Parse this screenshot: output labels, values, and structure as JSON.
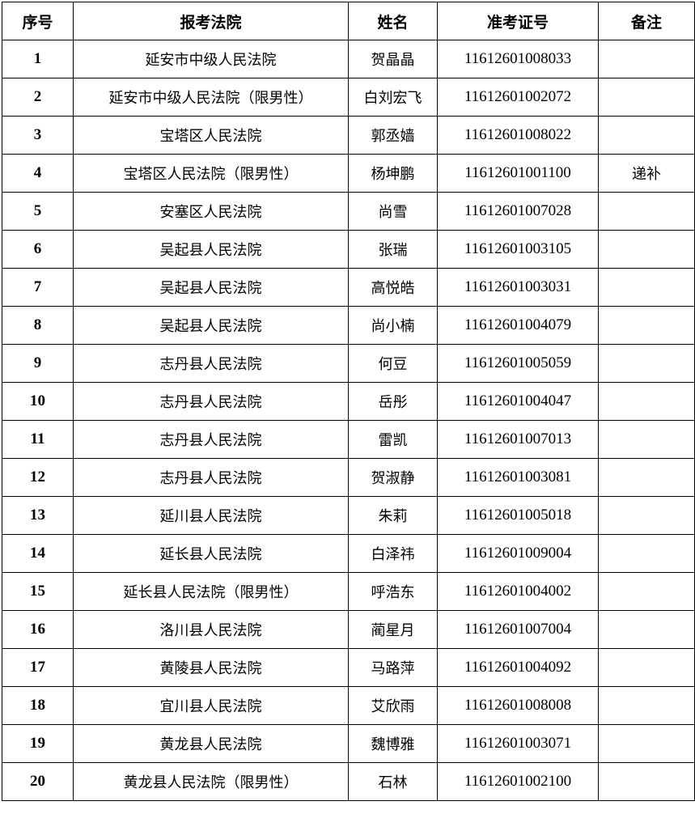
{
  "headers": [
    "序号",
    "报考法院",
    "姓名",
    "准考证号",
    "备注"
  ],
  "rows": [
    {
      "no": "1",
      "court": "延安市中级人民法院",
      "name": "贺晶晶",
      "id": "11612601008033",
      "note": ""
    },
    {
      "no": "2",
      "court": "延安市中级人民法院（限男性）",
      "name": "白刘宏飞",
      "id": "11612601002072",
      "note": ""
    },
    {
      "no": "3",
      "court": "宝塔区人民法院",
      "name": "郭丞嫱",
      "id": "11612601008022",
      "note": ""
    },
    {
      "no": "4",
      "court": "宝塔区人民法院（限男性）",
      "name": "杨坤鹏",
      "id": "11612601001100",
      "note": "递补"
    },
    {
      "no": "5",
      "court": "安塞区人民法院",
      "name": "尚雪",
      "id": "11612601007028",
      "note": ""
    },
    {
      "no": "6",
      "court": "吴起县人民法院",
      "name": "张瑞",
      "id": "11612601003105",
      "note": ""
    },
    {
      "no": "7",
      "court": "吴起县人民法院",
      "name": "高悦皓",
      "id": "11612601003031",
      "note": ""
    },
    {
      "no": "8",
      "court": "吴起县人民法院",
      "name": "尚小楠",
      "id": "11612601004079",
      "note": ""
    },
    {
      "no": "9",
      "court": "志丹县人民法院",
      "name": "何豆",
      "id": "11612601005059",
      "note": ""
    },
    {
      "no": "10",
      "court": "志丹县人民法院",
      "name": "岳彤",
      "id": "11612601004047",
      "note": ""
    },
    {
      "no": "11",
      "court": "志丹县人民法院",
      "name": "雷凯",
      "id": "11612601007013",
      "note": ""
    },
    {
      "no": "12",
      "court": "志丹县人民法院",
      "name": "贺淑静",
      "id": "11612601003081",
      "note": ""
    },
    {
      "no": "13",
      "court": "延川县人民法院",
      "name": "朱莉",
      "id": "11612601005018",
      "note": ""
    },
    {
      "no": "14",
      "court": "延长县人民法院",
      "name": "白泽祎",
      "id": "11612601009004",
      "note": ""
    },
    {
      "no": "15",
      "court": "延长县人民法院（限男性）",
      "name": "呼浩东",
      "id": "11612601004002",
      "note": ""
    },
    {
      "no": "16",
      "court": "洛川县人民法院",
      "name": "蔺星月",
      "id": "11612601007004",
      "note": ""
    },
    {
      "no": "17",
      "court": "黄陵县人民法院",
      "name": "马路萍",
      "id": "11612601004092",
      "note": ""
    },
    {
      "no": "18",
      "court": "宜川县人民法院",
      "name": "艾欣雨",
      "id": "11612601008008",
      "note": ""
    },
    {
      "no": "19",
      "court": "黄龙县人民法院",
      "name": "魏博雅",
      "id": "11612601003071",
      "note": ""
    },
    {
      "no": "20",
      "court": "黄龙县人民法院（限男性）",
      "name": "石林",
      "id": "11612601002100",
      "note": ""
    }
  ]
}
